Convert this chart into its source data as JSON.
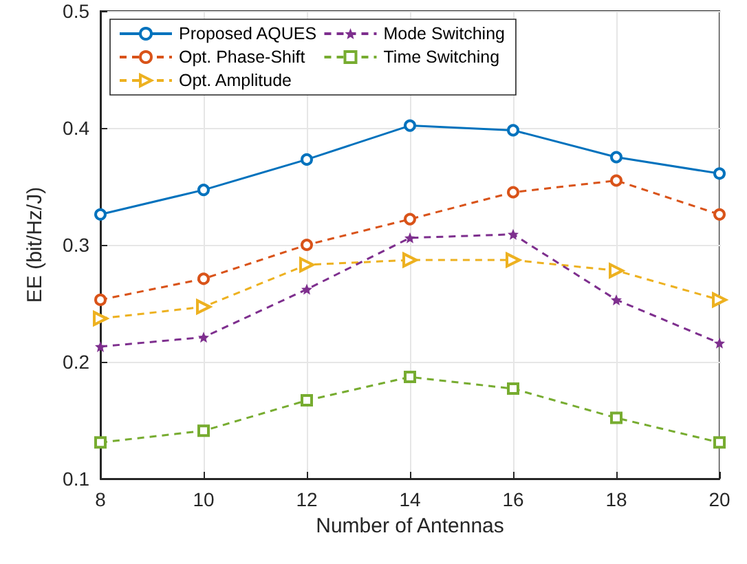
{
  "chart_data": {
    "type": "line",
    "xlabel": "Number of Antennas",
    "ylabel": "EE (bit/Hz/J)",
    "x": [
      8,
      10,
      12,
      14,
      16,
      18,
      20
    ],
    "series": [
      {
        "name": "Proposed AQUES",
        "color": "#0072bd",
        "marker": "circle",
        "line_style": "solid",
        "values": [
          0.326,
          0.347,
          0.373,
          0.402,
          0.398,
          0.375,
          0.361
        ]
      },
      {
        "name": "Opt. Phase-Shift",
        "color": "#d95319",
        "marker": "circle",
        "line_style": "dashed",
        "values": [
          0.253,
          0.271,
          0.3,
          0.322,
          0.345,
          0.355,
          0.326
        ]
      },
      {
        "name": "Opt. Amplitude",
        "color": "#edb120",
        "marker": "triangle",
        "line_style": "dashed",
        "values": [
          0.237,
          0.247,
          0.283,
          0.287,
          0.287,
          0.278,
          0.253
        ]
      },
      {
        "name": "Mode Switching",
        "color": "#7e2f8e",
        "marker": "star",
        "line_style": "dashed",
        "values": [
          0.213,
          0.221,
          0.262,
          0.306,
          0.309,
          0.253,
          0.216
        ]
      },
      {
        "name": "Time Switching",
        "color": "#77ac30",
        "marker": "square",
        "line_style": "dashed",
        "values": [
          0.131,
          0.141,
          0.167,
          0.187,
          0.177,
          0.152,
          0.131
        ]
      }
    ],
    "xlim": [
      8,
      20
    ],
    "xticks": [
      8,
      10,
      12,
      14,
      16,
      18,
      20
    ],
    "ylim": [
      0.1,
      0.5
    ],
    "yticks": [
      0.1,
      0.2,
      0.3,
      0.4,
      0.5
    ],
    "grid": true,
    "legend": "top left"
  }
}
